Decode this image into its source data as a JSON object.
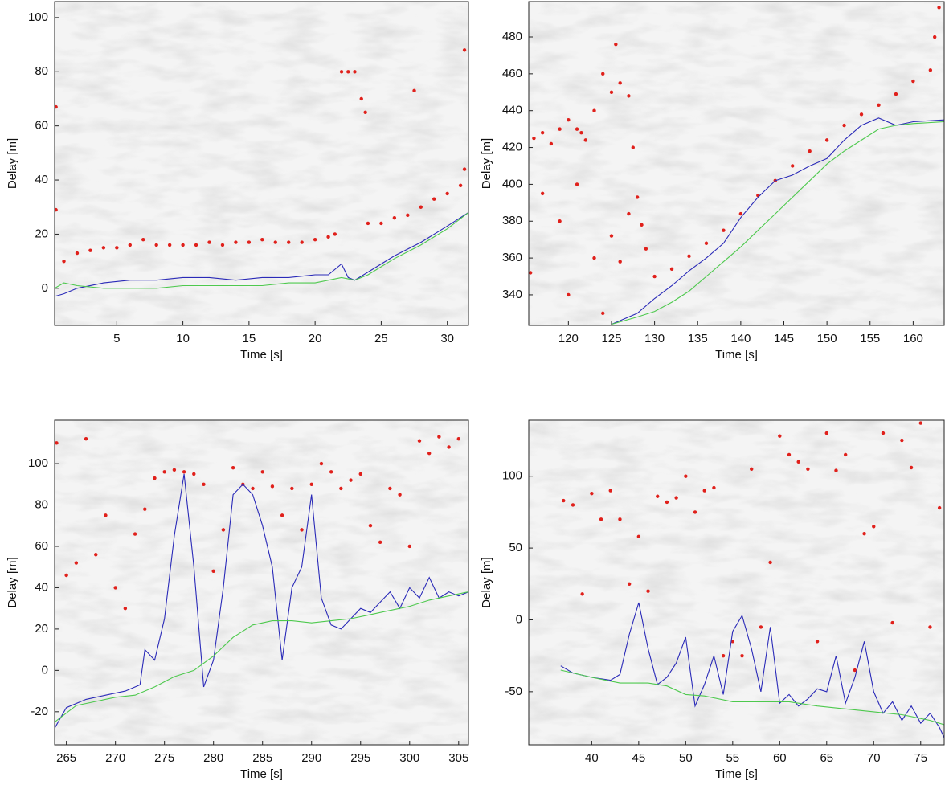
{
  "chart_data": [
    {
      "type": "line",
      "xlabel": "Time [s]",
      "ylabel": "Delay [m]",
      "xlim": [
        0.3,
        31.6
      ],
      "ylim": [
        -13.7,
        105.9
      ],
      "xticks": [
        5,
        10,
        15,
        20,
        25,
        30
      ],
      "yticks": [
        0,
        20,
        40,
        60,
        80,
        100
      ],
      "series": [
        {
          "color": "#e0201b",
          "style": "markers",
          "x": [
            0.4,
            1,
            2,
            3,
            4,
            5,
            6,
            7,
            8,
            9,
            10,
            11,
            12,
            13,
            14,
            15,
            16,
            17,
            18,
            19,
            20,
            21,
            21.5,
            22,
            22.5,
            23,
            23.5,
            23.8,
            24,
            25,
            26,
            27,
            28,
            29,
            30,
            31,
            31.3,
            0.4,
            31.3,
            27.5
          ],
          "values": [
            29,
            10,
            13,
            14,
            15,
            15,
            16,
            18,
            16,
            16,
            16,
            16,
            17,
            16,
            17,
            17,
            18,
            17,
            17,
            17,
            18,
            19,
            20,
            80,
            80,
            80,
            70,
            65,
            24,
            24,
            26,
            27,
            30,
            33,
            35,
            38,
            44,
            67,
            88,
            73
          ]
        },
        {
          "color": "#2a2ab8",
          "style": "line",
          "x": [
            0.3,
            1,
            2,
            4,
            6,
            8,
            10,
            12,
            14,
            16,
            18,
            20,
            21,
            22,
            22.5,
            23,
            24,
            26,
            28,
            30,
            31.6
          ],
          "values": [
            -3,
            -2,
            0,
            2,
            3,
            3,
            4,
            4,
            3,
            4,
            4,
            5,
            5,
            9,
            4,
            3,
            6,
            12,
            17,
            23,
            28
          ]
        },
        {
          "color": "#4ec94e",
          "style": "line",
          "x": [
            0.3,
            1,
            2,
            4,
            6,
            8,
            10,
            12,
            14,
            16,
            18,
            20,
            22,
            23,
            24,
            26,
            28,
            30,
            31.6
          ],
          "values": [
            0,
            2,
            1,
            0,
            0,
            0,
            1,
            1,
            1,
            1,
            2,
            2,
            4,
            3,
            5,
            11,
            16,
            22,
            28
          ]
        }
      ]
    },
    {
      "type": "line",
      "xlabel": "Time [s]",
      "ylabel": "Delay [m]",
      "xlim": [
        115.4,
        163.6
      ],
      "ylim": [
        323.4,
        499.2
      ],
      "xticks": [
        120,
        125,
        130,
        135,
        140,
        145,
        150,
        155,
        160
      ],
      "yticks": [
        340,
        360,
        380,
        400,
        420,
        440,
        460,
        480
      ],
      "series": [
        {
          "color": "#e0201b",
          "style": "markers",
          "x": [
            115.6,
            116,
            117,
            118,
            119,
            120,
            121,
            121.5,
            122,
            123,
            124,
            125,
            125.5,
            126,
            127,
            127.5,
            128,
            128.5,
            117,
            119,
            121,
            123,
            125,
            126,
            127,
            129,
            130,
            132,
            134,
            136,
            138,
            140,
            142,
            144,
            146,
            148,
            150,
            152,
            154,
            156,
            158,
            160,
            162,
            162.5,
            163,
            120,
            124
          ],
          "values": [
            352,
            425,
            428,
            422,
            430,
            435,
            430,
            428,
            424,
            440,
            460,
            450,
            476,
            455,
            448,
            420,
            393,
            378,
            395,
            380,
            400,
            360,
            372,
            358,
            384,
            365,
            350,
            354,
            361,
            368,
            375,
            384,
            394,
            402,
            410,
            418,
            424,
            432,
            438,
            443,
            449,
            456,
            462,
            480,
            496,
            340,
            330
          ]
        },
        {
          "color": "#2a2ab8",
          "style": "line",
          "x": [
            125,
            128,
            130,
            132,
            134,
            136,
            138,
            140,
            142,
            144,
            146,
            148,
            150,
            152,
            154,
            156,
            158,
            160,
            163.6
          ],
          "values": [
            324,
            330,
            338,
            345,
            353,
            360,
            368,
            382,
            393,
            402,
            405,
            410,
            414,
            424,
            432,
            436,
            432,
            434,
            435
          ]
        },
        {
          "color": "#4ec94e",
          "style": "line",
          "x": [
            125,
            128,
            130,
            132,
            134,
            136,
            138,
            140,
            142,
            144,
            146,
            148,
            150,
            152,
            154,
            156,
            158,
            160,
            163.6
          ],
          "values": [
            324,
            328,
            331,
            336,
            342,
            350,
            358,
            366,
            375,
            384,
            393,
            402,
            411,
            418,
            424,
            430,
            432,
            433,
            434
          ]
        }
      ]
    },
    {
      "type": "line",
      "xlabel": "Time [s]",
      "ylabel": "Delay [m]",
      "xlim": [
        263.8,
        306
      ],
      "ylim": [
        -36,
        121
      ],
      "xticks": [
        265,
        270,
        275,
        280,
        285,
        290,
        295,
        300,
        305
      ],
      "yticks": [
        -20,
        0,
        20,
        40,
        60,
        80,
        100
      ],
      "series": [
        {
          "color": "#e0201b",
          "style": "markers",
          "x": [
            264,
            265,
            266,
            267,
            268,
            269,
            270,
            271,
            272,
            273,
            274,
            275,
            276,
            277,
            278,
            279,
            280,
            281,
            282,
            283,
            284,
            285,
            286,
            287,
            288,
            289,
            290,
            291,
            292,
            293,
            294,
            295,
            296,
            297,
            298,
            299,
            300,
            301,
            302,
            303,
            304,
            305
          ],
          "values": [
            110,
            46,
            52,
            112,
            56,
            75,
            40,
            30,
            66,
            78,
            93,
            96,
            97,
            96,
            95,
            90,
            48,
            68,
            98,
            90,
            88,
            96,
            89,
            75,
            88,
            68,
            90,
            100,
            96,
            88,
            92,
            95,
            70,
            62,
            88,
            85,
            60,
            111,
            105,
            113,
            108,
            112
          ]
        },
        {
          "color": "#2a2ab8",
          "style": "line",
          "x": [
            263.8,
            265,
            267,
            269,
            271,
            272.5,
            273,
            274,
            275,
            276,
            277,
            278,
            279,
            280,
            281,
            282,
            283,
            284,
            285,
            286,
            287,
            288,
            289,
            290,
            291,
            292,
            293,
            294,
            295,
            296,
            297,
            298,
            299,
            300,
            301,
            302,
            303,
            304,
            305,
            306
          ],
          "values": [
            -28,
            -18,
            -14,
            -12,
            -10,
            -7,
            10,
            5,
            25,
            65,
            95,
            50,
            -8,
            5,
            40,
            85,
            90,
            85,
            70,
            50,
            5,
            40,
            50,
            85,
            35,
            22,
            20,
            25,
            30,
            28,
            33,
            38,
            30,
            40,
            35,
            45,
            35,
            38,
            36,
            38
          ]
        },
        {
          "color": "#4ec94e",
          "style": "line",
          "x": [
            263.8,
            266,
            268,
            270,
            272,
            274,
            276,
            278,
            280,
            282,
            284,
            286,
            288,
            290,
            292,
            294,
            296,
            298,
            300,
            302,
            304,
            306
          ],
          "values": [
            -25,
            -17,
            -15,
            -13,
            -12,
            -8,
            -3,
            0,
            7,
            16,
            22,
            24,
            24,
            23,
            24,
            25,
            27,
            29,
            31,
            34,
            36,
            38
          ]
        }
      ]
    },
    {
      "type": "line",
      "xlabel": "Time [s]",
      "ylabel": "Delay [m]",
      "xlim": [
        33.3,
        77.5
      ],
      "ylim": [
        -87,
        139
      ],
      "xticks": [
        40,
        45,
        50,
        55,
        60,
        65,
        70,
        75
      ],
      "yticks": [
        -50,
        0,
        50,
        100
      ],
      "series": [
        {
          "color": "#e0201b",
          "style": "markers",
          "x": [
            37,
            38,
            39,
            40,
            41,
            42,
            43,
            44,
            45,
            46,
            47,
            48,
            49,
            50,
            51,
            52,
            53,
            54,
            55,
            56,
            57,
            58,
            59,
            60,
            61,
            62,
            63,
            64,
            65,
            66,
            67,
            68,
            69,
            70,
            71,
            72,
            73,
            74,
            75,
            76,
            77
          ],
          "values": [
            83,
            80,
            18,
            88,
            70,
            90,
            70,
            25,
            58,
            20,
            86,
            82,
            85,
            100,
            75,
            90,
            92,
            -25,
            -15,
            -25,
            105,
            -5,
            40,
            128,
            115,
            110,
            105,
            -15,
            130,
            104,
            115,
            -35,
            60,
            65,
            130,
            -2,
            125,
            106,
            137,
            -5,
            78
          ]
        },
        {
          "color": "#2a2ab8",
          "style": "line",
          "x": [
            36.7,
            38,
            40,
            42,
            43,
            44,
            45,
            46,
            47,
            48,
            49,
            50,
            51,
            52,
            53,
            54,
            55,
            56,
            57,
            58,
            59,
            60,
            61,
            62,
            63,
            64,
            65,
            66,
            67,
            68,
            69,
            70,
            71,
            72,
            73,
            74,
            75,
            76,
            77,
            77.5
          ],
          "values": [
            -32,
            -37,
            -40,
            -42,
            -38,
            -10,
            12,
            -20,
            -45,
            -40,
            -30,
            -12,
            -60,
            -45,
            -25,
            -52,
            -8,
            3,
            -20,
            -50,
            -5,
            -58,
            -52,
            -60,
            -55,
            -48,
            -50,
            -25,
            -58,
            -40,
            -15,
            -50,
            -65,
            -57,
            -70,
            -60,
            -72,
            -65,
            -75,
            -82
          ]
        },
        {
          "color": "#4ec94e",
          "style": "line",
          "x": [
            36.7,
            40,
            43,
            46,
            48,
            50,
            52,
            55,
            58,
            61,
            64,
            67,
            70,
            73,
            76,
            77.5
          ],
          "values": [
            -35,
            -40,
            -44,
            -44,
            -46,
            -52,
            -53,
            -57,
            -57,
            -57,
            -60,
            -62,
            -64,
            -66,
            -70,
            -73
          ]
        }
      ]
    }
  ]
}
